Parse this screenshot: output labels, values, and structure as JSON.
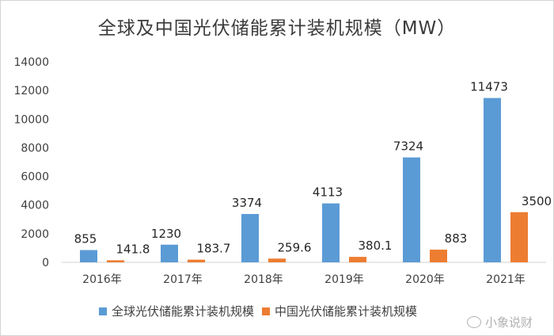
{
  "chart_data": {
    "type": "bar",
    "title": "全球及中国光伏储能累计装机规模（MW）",
    "categories": [
      "2016年",
      "2017年",
      "2018年",
      "2019年",
      "2020年",
      "2021年"
    ],
    "series": [
      {
        "name": "全球光伏储能累计装机规模",
        "color": "#5b9bd5",
        "values": [
          855,
          1230,
          3374,
          4113,
          7324,
          11473
        ],
        "labels": [
          "855",
          "1230",
          "3374",
          "4113",
          "7324",
          "11473"
        ]
      },
      {
        "name": "中国光伏储能累计装机规模",
        "color": "#ed7d31",
        "values": [
          141.8,
          183.7,
          259.6,
          380.1,
          883,
          3500
        ],
        "labels": [
          "141.8",
          "183.7",
          "259.6",
          "380.1",
          "883",
          "3500"
        ]
      }
    ],
    "ylim": [
      0,
      14000
    ],
    "yticks": [
      0,
      2000,
      4000,
      6000,
      8000,
      10000,
      12000,
      14000
    ],
    "grid": false,
    "legend_position": "bottom"
  },
  "watermark": "小象说财"
}
